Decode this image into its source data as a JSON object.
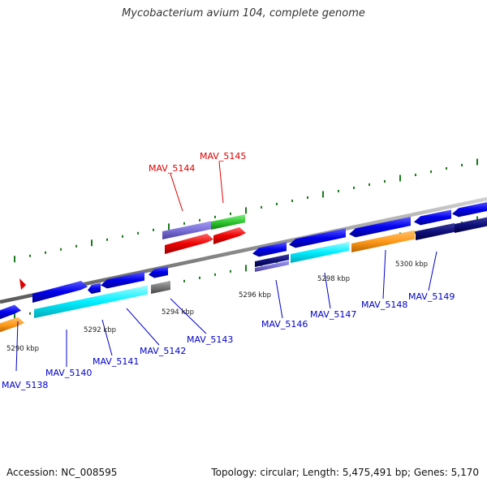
{
  "title": "Mycobacterium avium 104, complete genome",
  "footer": {
    "accession": "Accession: NC_008595",
    "summary": "Topology: circular; Length: 5,475,491 bp; Genes: 5,170"
  },
  "colors": {
    "backbone": "#7f7f7f",
    "tick": "#1a7a1a",
    "label_default": "#0000cc",
    "label_highlight": "#dd0000"
  },
  "scale": {
    "unit": "kbp",
    "labels": [
      "5290 kbp",
      "5292 kbp",
      "5294 kbp",
      "5296 kbp",
      "5298 kbp",
      "5300 kbp"
    ]
  },
  "genes": [
    {
      "name": "MAV_5138",
      "highlight": false
    },
    {
      "name": "MAV_5140",
      "highlight": false
    },
    {
      "name": "MAV_5141",
      "highlight": false
    },
    {
      "name": "MAV_5142",
      "highlight": false
    },
    {
      "name": "MAV_5143",
      "highlight": false
    },
    {
      "name": "MAV_5144",
      "highlight": true
    },
    {
      "name": "MAV_5145",
      "highlight": true
    },
    {
      "name": "MAV_5146",
      "highlight": false
    },
    {
      "name": "MAV_5147",
      "highlight": false
    },
    {
      "name": "MAV_5148",
      "highlight": false
    },
    {
      "name": "MAV_5149",
      "highlight": false
    }
  ]
}
